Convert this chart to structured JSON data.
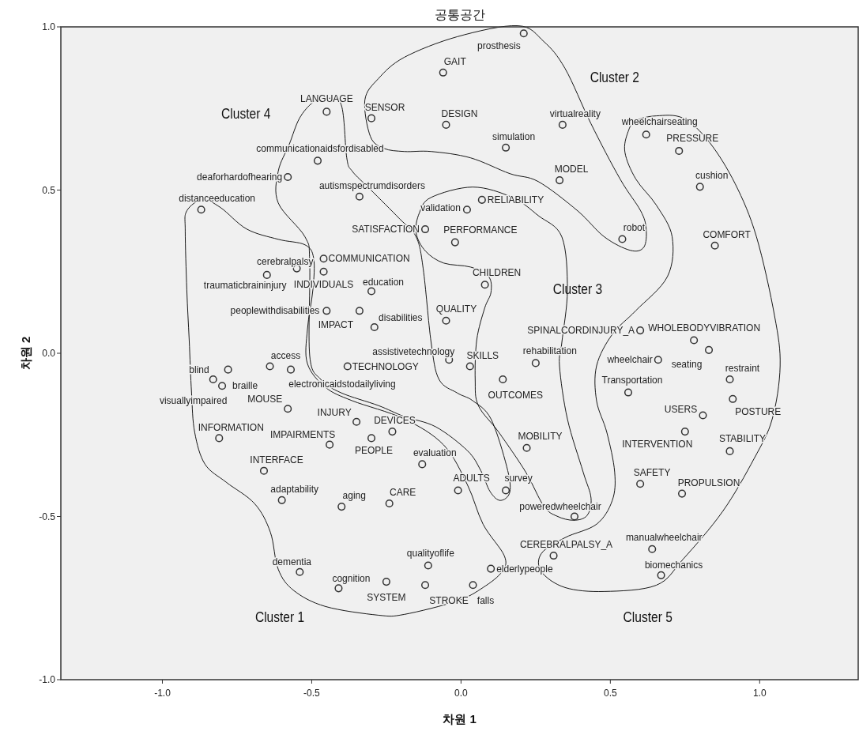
{
  "chart_data": {
    "type": "scatter",
    "title": "공통공간",
    "xlabel": "차원 1",
    "ylabel": "차원 2",
    "xlim": [
      -1.34,
      1.33
    ],
    "ylim": [
      -1.0,
      1.0
    ],
    "xticks": [
      {
        "value": -1.0,
        "label": "-1.0"
      },
      {
        "value": -0.5,
        "label": "-0.5"
      },
      {
        "value": 0.0,
        "label": "0.0"
      },
      {
        "value": 0.5,
        "label": "0.5"
      },
      {
        "value": 1.0,
        "label": "1.0"
      }
    ],
    "yticks": [
      {
        "value": -1.0,
        "label": "-1.0"
      },
      {
        "value": -0.5,
        "label": "-0.5"
      },
      {
        "value": 0.0,
        "label": "0.0"
      },
      {
        "value": 0.5,
        "label": "0.5"
      },
      {
        "value": 1.0,
        "label": "1.0"
      }
    ],
    "marker": "circle",
    "grid": false,
    "series": [
      {
        "color": "#333333",
        "x": [
          0.21,
          -0.06,
          -0.45,
          -0.3,
          -0.05,
          0.15,
          0.34,
          0.62,
          0.73,
          0.33,
          0.8,
          -0.48,
          -0.58,
          -0.34,
          -0.87,
          0.02,
          0.07,
          -0.12,
          -0.02,
          0.54,
          0.85,
          -0.46,
          -0.65,
          -0.55,
          -0.46,
          -0.3,
          0.08,
          -0.45,
          -0.34,
          -0.29,
          -0.05,
          0.6,
          0.78,
          0.83,
          -0.04,
          0.03,
          0.25,
          -0.38,
          0.66,
          -0.64,
          -0.83,
          -0.8,
          -0.78,
          -0.57,
          0.14,
          0.9,
          0.56,
          0.91,
          -0.58,
          0.81,
          -0.35,
          0.75,
          -0.23,
          -0.3,
          -0.81,
          -0.44,
          0.22,
          0.9,
          -0.13,
          -0.66,
          0.6,
          -0.01,
          0.15,
          0.74,
          -0.6,
          -0.24,
          -0.4,
          0.38,
          0.64,
          0.31,
          -0.11,
          0.1,
          -0.54,
          0.67,
          -0.25,
          0.04,
          -0.12,
          -0.41
        ],
        "values": [
          0.98,
          0.86,
          0.74,
          0.72,
          0.7,
          0.63,
          0.7,
          0.67,
          0.62,
          0.53,
          0.51,
          0.59,
          0.54,
          0.48,
          0.44,
          0.44,
          0.47,
          0.38,
          0.34,
          0.35,
          0.33,
          0.29,
          0.24,
          0.26,
          0.25,
          0.19,
          0.21,
          0.13,
          0.13,
          0.08,
          0.1,
          0.07,
          0.04,
          0.01,
          -0.02,
          -0.04,
          -0.03,
          -0.04,
          -0.02,
          -0.04,
          -0.08,
          -0.1,
          -0.05,
          -0.05,
          -0.08,
          -0.08,
          -0.12,
          -0.14,
          -0.17,
          -0.19,
          -0.21,
          -0.24,
          -0.24,
          -0.26,
          -0.26,
          -0.28,
          -0.29,
          -0.3,
          -0.34,
          -0.36,
          -0.4,
          -0.42,
          -0.42,
          -0.43,
          -0.45,
          -0.46,
          -0.47,
          -0.5,
          -0.6,
          -0.62,
          -0.65,
          -0.66,
          -0.67,
          -0.68,
          -0.7,
          -0.71,
          -0.71,
          -0.72
        ]
      }
    ],
    "annotations": [
      {
        "text": "prosthesis",
        "x": 0.21,
        "y": 0.98
      },
      {
        "text": "GAIT",
        "x": -0.06,
        "y": 0.86
      },
      {
        "text": "LANGUAGE",
        "x": -0.45,
        "y": 0.74
      },
      {
        "text": "SENSOR",
        "x": -0.3,
        "y": 0.72
      },
      {
        "text": "DESIGN",
        "x": -0.05,
        "y": 0.7
      },
      {
        "text": "simulation",
        "x": 0.15,
        "y": 0.63
      },
      {
        "text": "virtualreality",
        "x": 0.34,
        "y": 0.7
      },
      {
        "text": "wheelchairseating",
        "x": 0.62,
        "y": 0.67
      },
      {
        "text": "PRESSURE",
        "x": 0.73,
        "y": 0.62
      },
      {
        "text": "MODEL",
        "x": 0.33,
        "y": 0.53
      },
      {
        "text": "cushion",
        "x": 0.8,
        "y": 0.51
      },
      {
        "text": "communicationaidsfordisabled",
        "x": -0.48,
        "y": 0.59
      },
      {
        "text": "deaforhardofhearing",
        "x": -0.58,
        "y": 0.54
      },
      {
        "text": "autismspectrumdisorders",
        "x": -0.34,
        "y": 0.48
      },
      {
        "text": "distanceeducation",
        "x": -0.87,
        "y": 0.44
      },
      {
        "text": "validation",
        "x": 0.02,
        "y": 0.44
      },
      {
        "text": "RELIABILITY",
        "x": 0.07,
        "y": 0.47
      },
      {
        "text": "SATISFACTION",
        "x": -0.12,
        "y": 0.38
      },
      {
        "text": "PERFORMANCE",
        "x": -0.02,
        "y": 0.34
      },
      {
        "text": "robot",
        "x": 0.54,
        "y": 0.35
      },
      {
        "text": "COMFORT",
        "x": 0.85,
        "y": 0.33
      },
      {
        "text": "COMMUNICATION",
        "x": -0.46,
        "y": 0.29
      },
      {
        "text": "cerebralpalsy",
        "x": -0.65,
        "y": 0.24
      },
      {
        "text": "traumaticbraininjury",
        "x": -0.55,
        "y": 0.26
      },
      {
        "text": "INDIVIDUALS",
        "x": -0.46,
        "y": 0.25
      },
      {
        "text": "education",
        "x": -0.3,
        "y": 0.19
      },
      {
        "text": "CHILDREN",
        "x": 0.08,
        "y": 0.21
      },
      {
        "text": "peoplewithdisabilities",
        "x": -0.45,
        "y": 0.13
      },
      {
        "text": "IMPACT",
        "x": -0.34,
        "y": 0.13
      },
      {
        "text": "disabilities",
        "x": -0.29,
        "y": 0.08
      },
      {
        "text": "QUALITY",
        "x": -0.05,
        "y": 0.1
      },
      {
        "text": "SPINALCORDINJURY_A",
        "x": 0.6,
        "y": 0.07
      },
      {
        "text": "WHOLEBODYVIBRATION",
        "x": 0.78,
        "y": 0.04
      },
      {
        "text": "seating",
        "x": 0.83,
        "y": 0.01
      },
      {
        "text": "assistivetechnology",
        "x": -0.04,
        "y": -0.02
      },
      {
        "text": "SKILLS",
        "x": 0.03,
        "y": -0.04
      },
      {
        "text": "rehabilitation",
        "x": 0.25,
        "y": -0.03
      },
      {
        "text": "TECHNOLOGY",
        "x": -0.38,
        "y": -0.04
      },
      {
        "text": "wheelchair",
        "x": 0.66,
        "y": -0.02
      },
      {
        "text": "access",
        "x": -0.64,
        "y": -0.04
      },
      {
        "text": "blind",
        "x": -0.83,
        "y": -0.08
      },
      {
        "text": "braille",
        "x": -0.8,
        "y": -0.1
      },
      {
        "text": "visuallyimpaired",
        "x": -0.78,
        "y": -0.05
      },
      {
        "text": "electronicaidstodailyliving",
        "x": -0.57,
        "y": -0.05
      },
      {
        "text": "OUTCOMES",
        "x": 0.14,
        "y": -0.08
      },
      {
        "text": "restraint",
        "x": 0.9,
        "y": -0.08
      },
      {
        "text": "Transportation",
        "x": 0.56,
        "y": -0.12
      },
      {
        "text": "POSTURE",
        "x": 0.91,
        "y": -0.14
      },
      {
        "text": "MOUSE",
        "x": -0.58,
        "y": -0.17
      },
      {
        "text": "USERS",
        "x": 0.81,
        "y": -0.19
      },
      {
        "text": "INJURY",
        "x": -0.35,
        "y": -0.21
      },
      {
        "text": "INTERVENTION",
        "x": 0.75,
        "y": -0.24
      },
      {
        "text": "DEVICES",
        "x": -0.23,
        "y": -0.24
      },
      {
        "text": "PEOPLE",
        "x": -0.3,
        "y": -0.26
      },
      {
        "text": "INFORMATION",
        "x": -0.81,
        "y": -0.26
      },
      {
        "text": "IMPAIRMENTS",
        "x": -0.44,
        "y": -0.28
      },
      {
        "text": "MOBILITY",
        "x": 0.22,
        "y": -0.29
      },
      {
        "text": "STABILITY",
        "x": 0.9,
        "y": -0.3
      },
      {
        "text": "evaluation",
        "x": -0.13,
        "y": -0.34
      },
      {
        "text": "INTERFACE",
        "x": -0.66,
        "y": -0.36
      },
      {
        "text": "SAFETY",
        "x": 0.6,
        "y": -0.4
      },
      {
        "text": "ADULTS",
        "x": -0.01,
        "y": -0.42
      },
      {
        "text": "survey",
        "x": 0.15,
        "y": -0.42
      },
      {
        "text": "PROPULSION",
        "x": 0.74,
        "y": -0.43
      },
      {
        "text": "adaptability",
        "x": -0.6,
        "y": -0.45
      },
      {
        "text": "CARE",
        "x": -0.24,
        "y": -0.46
      },
      {
        "text": "aging",
        "x": -0.4,
        "y": -0.47
      },
      {
        "text": "poweredwheelchair",
        "x": 0.38,
        "y": -0.5
      },
      {
        "text": "manualwheelchair",
        "x": 0.64,
        "y": -0.6
      },
      {
        "text": "CEREBRALPALSY_A",
        "x": 0.31,
        "y": -0.62
      },
      {
        "text": "qualityoflife",
        "x": -0.11,
        "y": -0.65
      },
      {
        "text": "elderlypeople",
        "x": 0.1,
        "y": -0.66
      },
      {
        "text": "dementia",
        "x": -0.54,
        "y": -0.67
      },
      {
        "text": "biomechanics",
        "x": 0.67,
        "y": -0.68
      },
      {
        "text": "SYSTEM",
        "x": -0.25,
        "y": -0.7
      },
      {
        "text": "falls",
        "x": 0.04,
        "y": -0.71
      },
      {
        "text": "STROKE",
        "x": -0.12,
        "y": -0.71
      },
      {
        "text": "cognition",
        "x": -0.41,
        "y": -0.72
      },
      "Cluster 4",
      "Cluster 2",
      "Cluster 3",
      "Cluster 1",
      "Cluster 5"
    ]
  }
}
